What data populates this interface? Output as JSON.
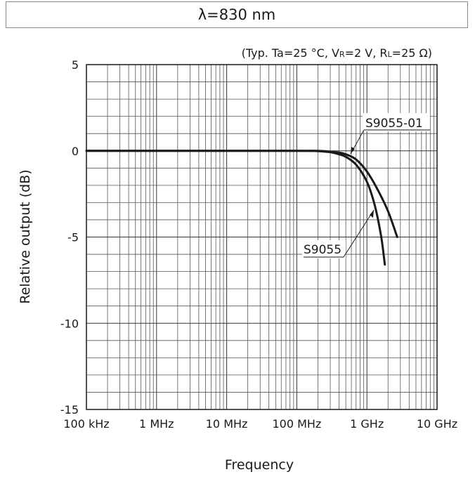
{
  "chart_data": {
    "type": "line",
    "title": "λ=830 nm",
    "conditions": {
      "prefix": "(Typ. Ta=25 °C, V",
      "vr_sub": "R",
      "mid": "=2 V, R",
      "rl_sub": "L",
      "suffix": "=25 Ω)"
    },
    "xlabel": "Frequency",
    "ylabel": "Relative output (dB)",
    "x_scale": "log",
    "xlim": [
      100000,
      10000000000
    ],
    "ylim": [
      -15,
      5
    ],
    "x_ticks": [
      {
        "value": 100000,
        "label": "100 kHz"
      },
      {
        "value": 1000000,
        "label": "1 MHz"
      },
      {
        "value": 10000000,
        "label": "10 MHz"
      },
      {
        "value": 100000000,
        "label": "100 MHz"
      },
      {
        "value": 1000000000,
        "label": "1 GHz"
      },
      {
        "value": 10000000000,
        "label": "10 GHz"
      }
    ],
    "y_ticks": [
      {
        "value": 5,
        "label": "5"
      },
      {
        "value": 0,
        "label": "0"
      },
      {
        "value": -5,
        "label": "-5"
      },
      {
        "value": -10,
        "label": "-10"
      },
      {
        "value": -15,
        "label": "-15"
      }
    ],
    "grid": true,
    "series": [
      {
        "name": "S9055-01",
        "x": [
          100000,
          1000000,
          10000000,
          100000000,
          200000000,
          300000000,
          400000000,
          500000000,
          700000000,
          1000000000,
          1400000000,
          2000000000,
          2700000000
        ],
        "y": [
          0,
          0,
          0,
          0,
          0,
          -0.05,
          -0.1,
          -0.2,
          -0.5,
          -1.2,
          -2.2,
          -3.5,
          -5.0
        ]
      },
      {
        "name": "S9055",
        "x": [
          100000,
          1000000,
          10000000,
          100000000,
          200000000,
          300000000,
          400000000,
          500000000,
          700000000,
          1000000000,
          1300000000,
          1600000000,
          1800000000
        ],
        "y": [
          0,
          0,
          0,
          0,
          -0.02,
          -0.08,
          -0.2,
          -0.35,
          -0.8,
          -1.8,
          -3.2,
          -5.0,
          -6.6
        ]
      }
    ]
  }
}
